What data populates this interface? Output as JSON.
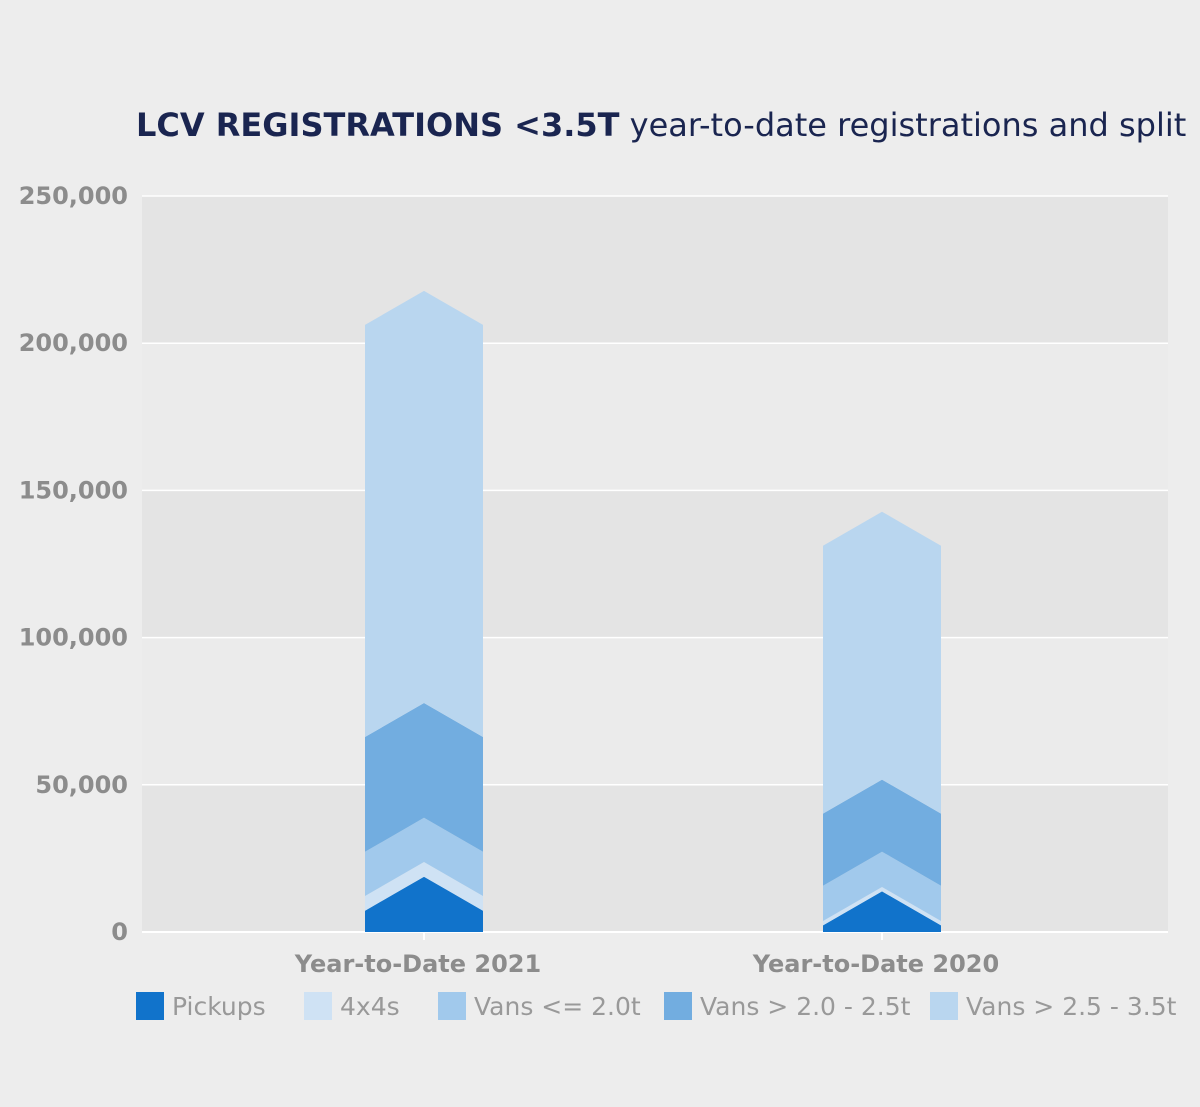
{
  "title": {
    "bold": "LCV REGISTRATIONS <3.5T",
    "rest": " year-to-date registrations and split"
  },
  "chart_data": {
    "type": "bar",
    "stacked": true,
    "categories": [
      "Year-to-Date 2021",
      "Year-to-Date 2020"
    ],
    "series": [
      {
        "name": "Pickups",
        "color": "#1173cb",
        "values": [
          13000,
          8000
        ]
      },
      {
        "name": "4x4s",
        "color": "#cfe2f4",
        "values": [
          5000,
          1500
        ]
      },
      {
        "name": "Vans <= 2.0t",
        "color": "#a1c9ec",
        "values": [
          15000,
          12000
        ]
      },
      {
        "name": "Vans > 2.0 - 2.5t",
        "color": "#72ade0",
        "values": [
          39000,
          24500
        ]
      },
      {
        "name": "Vans > 2.5 - 3.5t",
        "color": "#b9d6ef",
        "values": [
          140000,
          91000
        ]
      }
    ],
    "ylim": [
      0,
      250000
    ],
    "yticks": [
      "0",
      "50,000",
      "100,000",
      "150,000",
      "200,000",
      "250,000"
    ],
    "ytick_values": [
      0,
      50000,
      100000,
      150000,
      200000,
      250000
    ],
    "grid": true,
    "legend_position": "bottom"
  }
}
